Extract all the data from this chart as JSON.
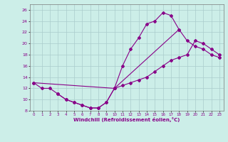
{
  "xlabel": "Windchill (Refroidissement éolien,°C)",
  "background_color": "#cceee8",
  "line_color": "#880088",
  "grid_color": "#aacccc",
  "xlim": [
    -0.5,
    23.5
  ],
  "ylim": [
    8,
    27
  ],
  "xticks": [
    0,
    1,
    2,
    3,
    4,
    5,
    6,
    7,
    8,
    9,
    10,
    11,
    12,
    13,
    14,
    15,
    16,
    17,
    18,
    19,
    20,
    21,
    22,
    23
  ],
  "yticks": [
    8,
    10,
    12,
    14,
    16,
    18,
    20,
    22,
    24,
    26
  ],
  "line1_x": [
    0,
    1,
    2,
    3,
    4,
    5,
    6,
    7,
    8,
    9,
    10,
    11,
    12,
    13,
    14,
    15,
    16,
    17,
    18
  ],
  "line1_y": [
    13,
    12,
    12,
    11,
    10,
    9.5,
    9,
    8.5,
    8.5,
    9.5,
    12,
    16,
    19,
    21,
    23.5,
    24,
    25.5,
    25,
    22.5
  ],
  "line2_x": [
    0,
    10,
    11,
    12,
    13,
    14,
    15,
    16,
    17,
    18,
    19,
    20,
    21,
    22,
    23
  ],
  "line2_y": [
    13,
    12,
    12.5,
    13,
    13.5,
    14,
    15,
    16,
    17,
    17.5,
    18,
    20.5,
    20,
    19,
    18
  ],
  "line3_x": [
    3,
    4,
    5,
    6,
    7,
    8,
    9,
    10,
    18,
    19,
    20,
    21,
    22,
    23
  ],
  "line3_y": [
    11,
    10,
    9.5,
    9,
    8.5,
    8.5,
    9.5,
    12,
    22.5,
    20.5,
    19.5,
    19,
    18,
    17.5
  ]
}
